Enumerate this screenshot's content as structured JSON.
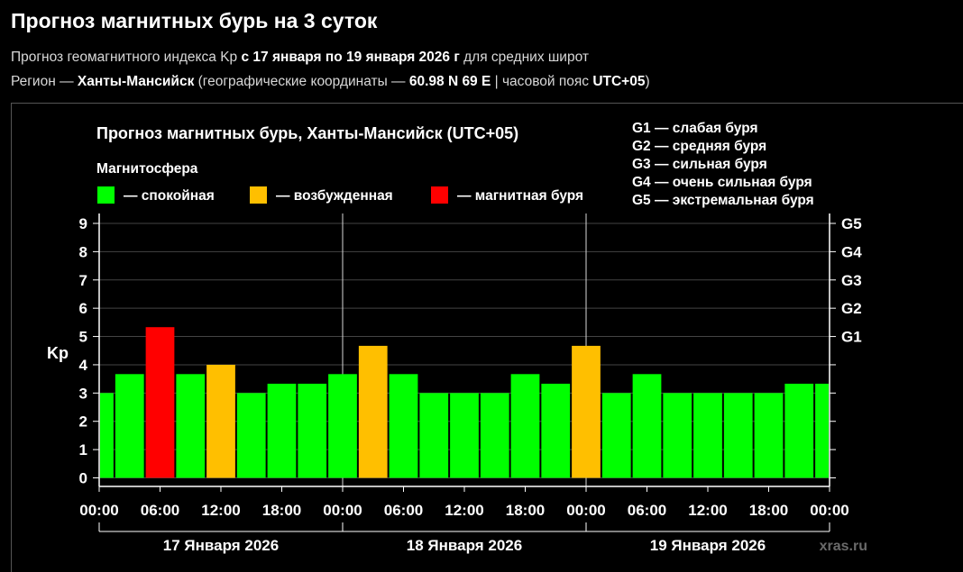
{
  "page": {
    "title": "Прогноз магнитных бурь на 3 суток",
    "line1_a": "Прогноз геомагнитного индекса Kp ",
    "line1_b": "с 17 января по 19 января 2026 г",
    "line1_c": " для средних широт",
    "line2_a": "Регион — ",
    "line2_b": "Ханты-Мансийск",
    "line2_c": " (географические координаты — ",
    "line2_d": "60.98 N 69 E",
    "line2_e": " | часовой пояс ",
    "line2_f": "UTC+05",
    "line2_g": ")"
  },
  "chart_data": {
    "type": "bar",
    "title": "Прогноз магнитных бурь, Ханты-Мансийск (UTC+05)",
    "ylabel": "Kp",
    "ylim": [
      0,
      9
    ],
    "yticks": [
      "0",
      "1",
      "2",
      "3",
      "4",
      "5",
      "6",
      "7",
      "8",
      "9"
    ],
    "grid": "horizontal",
    "legend": {
      "title": "Магнитосфера",
      "items": [
        {
          "label": "— спокойная",
          "color": "#00ff00"
        },
        {
          "label": "— возбужденная",
          "color": "#ffbf00"
        },
        {
          "label": "— магнитная буря",
          "color": "#ff0000"
        }
      ]
    },
    "g_legend": [
      "G1 — слабая буря",
      "G2 — средняя буря",
      "G3 — сильная буря",
      "G4 — очень сильная буря",
      "G5 — экстремальная буря"
    ],
    "g_levels": [
      {
        "label": "G1",
        "kp": 5
      },
      {
        "label": "G2",
        "kp": 6
      },
      {
        "label": "G3",
        "kp": 7
      },
      {
        "label": "G4",
        "kp": 8
      },
      {
        "label": "G5",
        "kp": 9
      }
    ],
    "x_ticks": [
      "00:00",
      "06:00",
      "12:00",
      "18:00",
      "00:00",
      "06:00",
      "12:00",
      "18:00",
      "00:00",
      "06:00",
      "12:00",
      "18:00",
      "00:00"
    ],
    "days": [
      "17 Января 2026",
      "18 Января 2026",
      "19 Января 2026"
    ],
    "values": [
      3.0,
      3.67,
      5.33,
      3.67,
      4.0,
      3.0,
      3.33,
      3.33,
      3.67,
      4.67,
      3.67,
      3.0,
      3.0,
      3.0,
      3.67,
      3.33,
      4.67,
      3.0,
      3.67,
      3.0,
      3.0,
      3.0,
      3.0,
      3.33,
      3.33
    ],
    "levels": [
      "calm",
      "calm",
      "storm",
      "calm",
      "excited",
      "calm",
      "calm",
      "calm",
      "calm",
      "excited",
      "calm",
      "calm",
      "calm",
      "calm",
      "calm",
      "calm",
      "excited",
      "calm",
      "calm",
      "calm",
      "calm",
      "calm",
      "calm",
      "calm",
      "calm"
    ],
    "level_colors": {
      "calm": "#00ff00",
      "excited": "#ffbf00",
      "storm": "#ff0000"
    }
  },
  "watermark": "xras.ru"
}
